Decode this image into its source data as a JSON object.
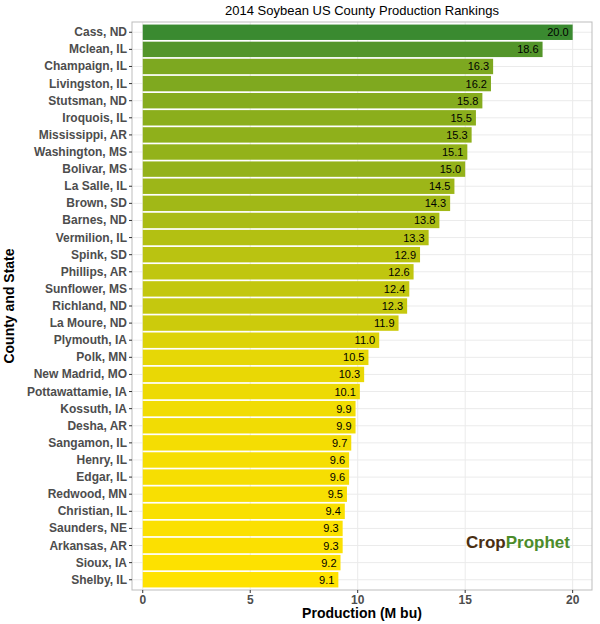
{
  "chart_data": {
    "type": "bar",
    "orientation": "horizontal",
    "title": "2014 Soybean US County Production Rankings",
    "x_label": "Production (M bu)",
    "y_label": "County and State",
    "annotations": [
      "CropProphet"
    ],
    "categories": [
      "Cass, ND",
      "Mclean, IL",
      "Champaign, IL",
      "Livingston, IL",
      "Stutsman, ND",
      "Iroquois, IL",
      "Mississippi, AR",
      "Washington, MS",
      "Bolivar, MS",
      "La Salle, IL",
      "Brown, SD",
      "Barnes, ND",
      "Vermilion, IL",
      "Spink, SD",
      "Phillips, AR",
      "Sunflower, MS",
      "Richland, ND",
      "La Moure, ND",
      "Plymouth, IA",
      "Polk, MN",
      "New Madrid, MO",
      "Pottawattamie, IA",
      "Kossuth, IA",
      "Desha, AR",
      "Sangamon, IL",
      "Henry, IL",
      "Edgar, IL",
      "Redwood, MN",
      "Christian, IL",
      "Saunders, NE",
      "Arkansas, AR",
      "Sioux, IA",
      "Shelby, IL"
    ],
    "values": [
      20.0,
      18.6,
      16.3,
      16.2,
      15.8,
      15.5,
      15.3,
      15.1,
      15.0,
      14.5,
      14.3,
      13.8,
      13.3,
      12.9,
      12.6,
      12.4,
      12.3,
      11.9,
      11.0,
      10.5,
      10.3,
      10.1,
      9.9,
      9.9,
      9.7,
      9.6,
      9.6,
      9.5,
      9.4,
      9.3,
      9.3,
      9.2,
      9.1
    ],
    "value_labels": [
      "20.0",
      "18.6",
      "16.3",
      "16.2",
      "15.8",
      "15.5",
      "15.3",
      "15.1",
      "15.0",
      "14.5",
      "14.3",
      "13.8",
      "13.3",
      "12.9",
      "12.6",
      "12.4",
      "12.3",
      "11.9",
      "11.0",
      "10.5",
      "10.3",
      "10.1",
      "9.9",
      "9.9",
      "9.7",
      "9.6",
      "9.6",
      "9.5",
      "9.4",
      "9.3",
      "9.3",
      "9.2",
      "9.1"
    ],
    "colors": [
      "#3a8a30",
      "#53952a",
      "#7da820",
      "#7fa91f",
      "#86ac1e",
      "#8bae1c",
      "#8fb01b",
      "#93b21a",
      "#94b21a",
      "#9db618",
      "#a1b817",
      "#aabc15",
      "#b3c012",
      "#bac311",
      "#c0c60f",
      "#c3c70f",
      "#c5c80e",
      "#cccb0c",
      "#ddd308",
      "#e6d706",
      "#e9d805",
      "#edda04",
      "#f1dc04",
      "#f1dc04",
      "#f4dd03",
      "#f6de02",
      "#f6de02",
      "#f8df02",
      "#f9e001",
      "#fbe001",
      "#fbe001",
      "#fde100",
      "#ffe200"
    ],
    "xlim": [
      -0.5,
      20.9
    ],
    "xticks": [
      0,
      5,
      10,
      15,
      20
    ],
    "grid": true,
    "data_labels": true
  }
}
